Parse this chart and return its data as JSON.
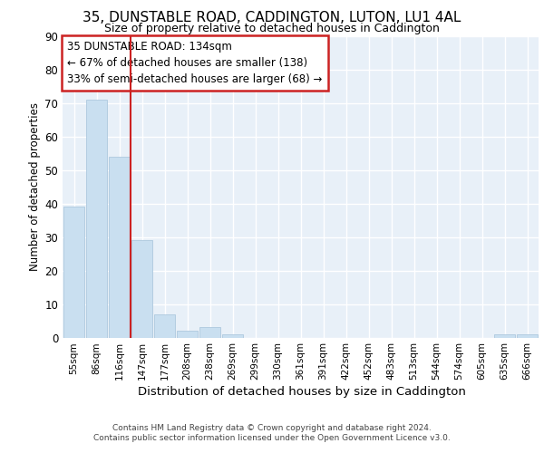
{
  "title_line1": "35, DUNSTABLE ROAD, CADDINGTON, LUTON, LU1 4AL",
  "title_line2": "Size of property relative to detached houses in Caddington",
  "xlabel": "Distribution of detached houses by size in Caddington",
  "ylabel": "Number of detached properties",
  "bar_labels": [
    "55sqm",
    "86sqm",
    "116sqm",
    "147sqm",
    "177sqm",
    "208sqm",
    "238sqm",
    "269sqm",
    "299sqm",
    "330sqm",
    "361sqm",
    "391sqm",
    "422sqm",
    "452sqm",
    "483sqm",
    "513sqm",
    "544sqm",
    "574sqm",
    "605sqm",
    "635sqm",
    "666sqm"
  ],
  "bar_values": [
    39,
    71,
    54,
    29,
    7,
    2,
    3,
    1,
    0,
    0,
    0,
    0,
    0,
    0,
    0,
    0,
    0,
    0,
    0,
    1,
    1
  ],
  "bar_color": "#c9dff0",
  "bar_edgecolor": "#adc8de",
  "vline_x": 2.5,
  "vline_color": "#cc2222",
  "ylim": [
    0,
    90
  ],
  "yticks": [
    0,
    10,
    20,
    30,
    40,
    50,
    60,
    70,
    80,
    90
  ],
  "annotation_text": "35 DUNSTABLE ROAD: 134sqm\n← 67% of detached houses are smaller (138)\n33% of semi-detached houses are larger (68) →",
  "annotation_box_edgecolor": "#cc2222",
  "footer_line1": "Contains HM Land Registry data © Crown copyright and database right 2024.",
  "footer_line2": "Contains public sector information licensed under the Open Government Licence v3.0.",
  "axes_bg_color": "#e8f0f8",
  "fig_bg": "#ffffff",
  "grid_color": "#ffffff"
}
